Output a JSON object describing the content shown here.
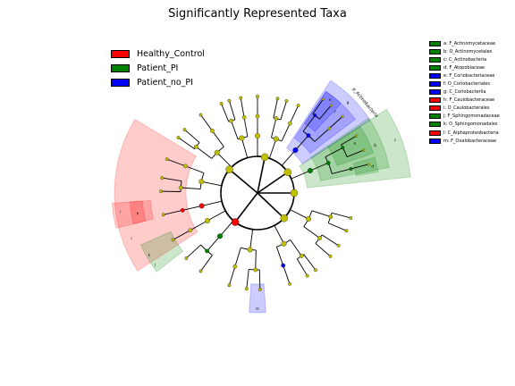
{
  "chart_data": {
    "type": "cladogram",
    "title": "Significantly Represented Taxa",
    "groups": [
      {
        "name": "Healthy_Control",
        "color": "#ff0000"
      },
      {
        "name": "Patient_PI",
        "color": "#008000"
      },
      {
        "name": "Patient_no_PI",
        "color": "#0000ff"
      }
    ],
    "taxa": [
      {
        "label": "a: F_Actinomycetaceae",
        "letter": "a",
        "level": "family",
        "group": "Patient_PI",
        "color": "#008000"
      },
      {
        "label": "b: O_Actinomycetales",
        "letter": "b",
        "level": "order",
        "group": "Patient_PI",
        "color": "#008000"
      },
      {
        "label": "c: C_Actinobacteria",
        "letter": "c",
        "level": "class",
        "group": "Patient_PI",
        "color": "#008000"
      },
      {
        "label": "d: F_Atopobiaceae",
        "letter": "d",
        "level": "family",
        "group": "Patient_PI",
        "color": "#008000"
      },
      {
        "label": "e: F_Coriobacteriaceae",
        "letter": "e",
        "level": "family",
        "group": "Patient_no_PI",
        "color": "#0000ff"
      },
      {
        "label": "f: O_Coriobacteriales",
        "letter": "f",
        "level": "order",
        "group": "Patient_no_PI",
        "color": "#0000ff"
      },
      {
        "label": "g: C_Coriobacteriia",
        "letter": "g",
        "level": "class",
        "group": "Patient_no_PI",
        "color": "#0000ff"
      },
      {
        "label": "h: F_Caulobacteraceae",
        "letter": "h",
        "level": "family",
        "group": "Healthy_Control",
        "color": "#ff0000"
      },
      {
        "label": "i: O_Caulobacterales",
        "letter": "i",
        "level": "order",
        "group": "Healthy_Control",
        "color": "#ff0000"
      },
      {
        "label": "j: F_Sphingomonadaceae",
        "letter": "j",
        "level": "family",
        "group": "Patient_PI",
        "color": "#008000"
      },
      {
        "label": "k: O_Sphingomonadales",
        "letter": "k",
        "level": "order",
        "group": "Patient_PI",
        "color": "#008000"
      },
      {
        "label": "l: C_Alphaproteobacteria",
        "letter": "l",
        "level": "class",
        "group": "Healthy_Control",
        "color": "#ff0000"
      },
      {
        "label": "m: F_Oxalobacteraceae",
        "letter": "m",
        "level": "family",
        "group": "Patient_no_PI",
        "color": "#0000ff"
      }
    ],
    "phylum_labels": [
      {
        "label": "p_Actinobacteria",
        "group": "Patient_PI"
      }
    ],
    "node_colors": {
      "default": "#bfbf00",
      "edge": "#000000"
    }
  }
}
